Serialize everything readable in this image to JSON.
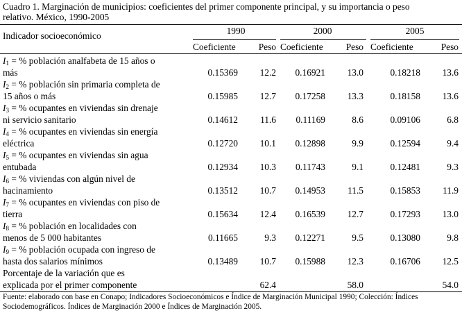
{
  "caption": {
    "line1": "Cuadro 1. Marginación de municipios: coeficientes del primer componente principal, y su importancia o peso",
    "line2": "relativo. México, 1990-2005"
  },
  "header": {
    "indicator_label": "Indicador socioeconómico",
    "years": [
      "1990",
      "2000",
      "2005"
    ],
    "coef_label": "Coeficiente",
    "peso_label": "Peso"
  },
  "rows": [
    {
      "code": "I",
      "sub": "1",
      "line1": " = % población analfabeta de 15 años o",
      "line2": "más",
      "values": [
        "0.15369",
        "12.2",
        "0.16921",
        "13.0",
        "0.18218",
        "13.6"
      ]
    },
    {
      "code": "I",
      "sub": "2",
      "line1": " = % población sin primaria completa de",
      "line2": "15 años o más",
      "values": [
        "0.15985",
        "12.7",
        "0.17258",
        "13.3",
        "0.18158",
        "13.6"
      ]
    },
    {
      "code": "I",
      "sub": "3",
      "line1": " = % ocupantes en viviendas sin drenaje",
      "line2": "ni servicio sanitario",
      "values": [
        "0.14612",
        "11.6",
        "0.11169",
        "8.6",
        "0.09106",
        "6.8"
      ]
    },
    {
      "code": "I",
      "sub": "4",
      "line1": " = % ocupantes en viviendas sin energía",
      "line2": "eléctrica",
      "values": [
        "0.12720",
        "10.1",
        "0.12898",
        "9.9",
        "0.12594",
        "9.4"
      ]
    },
    {
      "code": "I",
      "sub": "5",
      "line1": " = % ocupantes en viviendas sin agua",
      "line2": "entubada",
      "values": [
        "0.12934",
        "10.3",
        "0.11743",
        "9.1",
        "0.12481",
        "9.3"
      ]
    },
    {
      "code": "I",
      "sub": "6",
      "line1": " = % viviendas con algún nivel de",
      "line2": "hacinamiento",
      "values": [
        "0.13512",
        "10.7",
        "0.14953",
        "11.5",
        "0.15853",
        "11.9"
      ]
    },
    {
      "code": "I",
      "sub": "7",
      "line1": " = % ocupantes en viviendas con piso de",
      "line2": "tierra",
      "values": [
        "0.15634",
        "12.4",
        "0.16539",
        "12.7",
        "0.17293",
        "13.0"
      ]
    },
    {
      "code": "I",
      "sub": "8",
      "line1": " = % población en localidades con",
      "line2": "menos de 5 000 habitantes",
      "values": [
        "0.11665",
        "9.3",
        "0.12271",
        "9.5",
        "0.13080",
        "9.8"
      ]
    },
    {
      "code": "I",
      "sub": "9",
      "line1": " = % población ocupada con ingreso de",
      "line2": "hasta dos salarios mínimos",
      "values": [
        "0.13489",
        "10.7",
        "0.15988",
        "12.3",
        "0.16706",
        "12.5"
      ]
    }
  ],
  "variance_row": {
    "line1": "Porcentaje de la variación que es",
    "line2": "explicada por el primer componente",
    "values": [
      "62.4",
      "58.0",
      "54.0"
    ]
  },
  "footnote": {
    "line1": "Fuente: elaborado con base en Conapo; Indicadores Socioeconómicos e Índice de Marginación Municipal 1990; Colección: Índices",
    "line2": "Sociodemográficos. Índices de Marginación 2000 e Índices de Marginación 2005."
  }
}
